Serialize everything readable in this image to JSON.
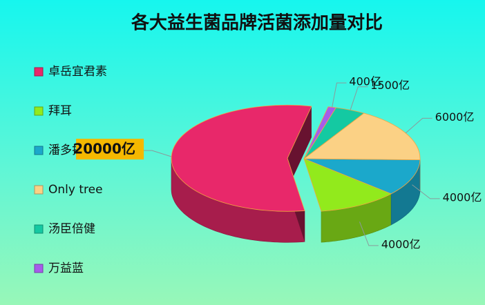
{
  "chart_data": {
    "type": "pie3d",
    "title": "各大益生菌品牌活菌添加量对比",
    "categories": [
      "卓岳宜君素",
      "拜耳",
      "潘多拉",
      "Only tree",
      "汤臣倍健",
      "万益蓝"
    ],
    "values": [
      20000,
      4000,
      4000,
      6000,
      1500,
      400
    ],
    "value_labels": [
      "20000亿",
      "4000亿",
      "4000亿",
      "6000亿",
      "1500亿",
      "400亿"
    ],
    "colors": [
      "#e8286a",
      "#92ea1c",
      "#1ba8cb",
      "#fbd185",
      "#14c9a2",
      "#a65cea"
    ],
    "legend": "left"
  }
}
